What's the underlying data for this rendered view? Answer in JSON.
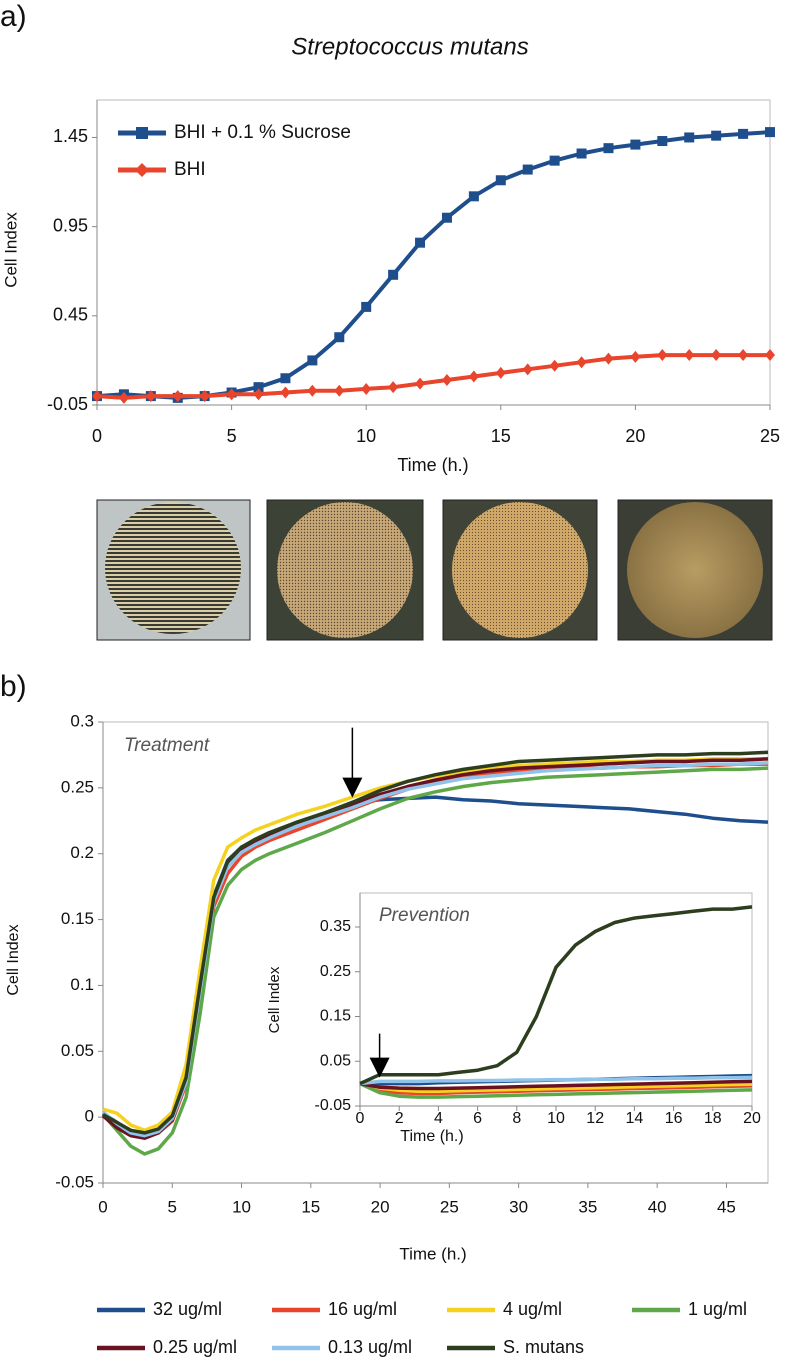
{
  "chart_data": [
    {
      "type": "line",
      "panel": "a)",
      "title": "Streptococcus mutans",
      "xlabel": "Time (h.)",
      "ylabel": "Cell Index",
      "x": [
        0,
        1,
        2,
        3,
        4,
        5,
        6,
        7,
        8,
        9,
        10,
        11,
        12,
        13,
        14,
        15,
        16,
        17,
        18,
        19,
        20,
        21,
        22,
        23,
        24,
        25
      ],
      "series": [
        {
          "name": "BHI + 0.1 % Sucrose",
          "color": "#1f4e8c",
          "marker": "square",
          "values": [
            0,
            0.01,
            0,
            -0.01,
            0,
            0.02,
            0.05,
            0.1,
            0.2,
            0.33,
            0.5,
            0.68,
            0.86,
            1.0,
            1.12,
            1.21,
            1.27,
            1.32,
            1.36,
            1.39,
            1.41,
            1.43,
            1.45,
            1.46,
            1.47,
            1.48
          ]
        },
        {
          "name": "BHI",
          "color": "#e8452c",
          "marker": "diamond",
          "values": [
            0,
            -0.01,
            0,
            0,
            0,
            0.01,
            0.01,
            0.02,
            0.03,
            0.03,
            0.04,
            0.05,
            0.07,
            0.09,
            0.11,
            0.13,
            0.15,
            0.17,
            0.19,
            0.21,
            0.22,
            0.23,
            0.23,
            0.23,
            0.23,
            0.23
          ]
        }
      ],
      "xlim": [
        0,
        25
      ],
      "xticks": [
        0,
        5,
        10,
        15,
        20,
        25
      ],
      "ylim": [
        -0.05,
        1.66
      ],
      "yticks": [
        -0.05,
        0.45,
        0.95,
        1.45
      ],
      "legend": "upper left"
    },
    {
      "type": "line",
      "panel": "b)",
      "annotation": "Treatment",
      "arrow_x": 18,
      "xlabel": "Time (h.)",
      "ylabel": "Cell Index",
      "x": [
        0,
        1,
        2,
        3,
        4,
        5,
        6,
        7,
        8,
        9,
        10,
        11,
        12,
        14,
        16,
        18,
        20,
        22,
        24,
        26,
        28,
        30,
        32,
        34,
        36,
        38,
        40,
        42,
        44,
        46,
        48
      ],
      "series": [
        {
          "name": "32 ug/ml",
          "color": "#1f4e8c",
          "values": [
            0.003,
            -0.004,
            -0.011,
            -0.013,
            -0.01,
            0,
            0.03,
            0.1,
            0.168,
            0.195,
            0.205,
            0.21,
            0.215,
            0.224,
            0.231,
            0.238,
            0.241,
            0.242,
            0.243,
            0.241,
            0.24,
            0.238,
            0.237,
            0.236,
            0.235,
            0.234,
            0.232,
            0.23,
            0.227,
            0.225,
            0.224
          ]
        },
        {
          "name": "16 ug/ml",
          "color": "#e8452c",
          "values": [
            0.002,
            -0.006,
            -0.013,
            -0.015,
            -0.012,
            -0.003,
            0.025,
            0.092,
            0.16,
            0.185,
            0.198,
            0.205,
            0.21,
            0.218,
            0.226,
            0.234,
            0.242,
            0.249,
            0.254,
            0.258,
            0.261,
            0.263,
            0.264,
            0.265,
            0.265,
            0.266,
            0.266,
            0.267,
            0.267,
            0.268,
            0.268
          ]
        },
        {
          "name": "4 ug/ml",
          "color": "#f5d21f",
          "values": [
            0.006,
            0.003,
            -0.006,
            -0.01,
            -0.006,
            0.004,
            0.04,
            0.112,
            0.18,
            0.205,
            0.212,
            0.218,
            0.222,
            0.23,
            0.236,
            0.243,
            0.25,
            0.255,
            0.259,
            0.262,
            0.265,
            0.267,
            0.268,
            0.269,
            0.27,
            0.27,
            0.271,
            0.271,
            0.272,
            0.272,
            0.272
          ]
        },
        {
          "name": "1 ug/ml",
          "color": "#5ea84a",
          "values": [
            0.002,
            -0.01,
            -0.022,
            -0.028,
            -0.024,
            -0.012,
            0.015,
            0.078,
            0.152,
            0.176,
            0.188,
            0.195,
            0.2,
            0.208,
            0.216,
            0.225,
            0.234,
            0.242,
            0.247,
            0.251,
            0.254,
            0.256,
            0.258,
            0.259,
            0.26,
            0.261,
            0.262,
            0.263,
            0.264,
            0.264,
            0.265
          ]
        },
        {
          "name": "0.25 ug/ml",
          "color": "#6b1220",
          "values": [
            0.001,
            -0.008,
            -0.014,
            -0.016,
            -0.012,
            -0.002,
            0.028,
            0.098,
            0.165,
            0.192,
            0.203,
            0.209,
            0.214,
            0.222,
            0.229,
            0.237,
            0.245,
            0.251,
            0.256,
            0.26,
            0.263,
            0.265,
            0.266,
            0.267,
            0.268,
            0.269,
            0.27,
            0.27,
            0.271,
            0.271,
            0.272
          ]
        },
        {
          "name": "0.13 ug/ml",
          "color": "#8fc3ea",
          "values": [
            0.004,
            -0.005,
            -0.012,
            -0.014,
            -0.011,
            -0.001,
            0.027,
            0.096,
            0.164,
            0.19,
            0.201,
            0.207,
            0.212,
            0.221,
            0.228,
            0.235,
            0.243,
            0.249,
            0.253,
            0.257,
            0.259,
            0.261,
            0.263,
            0.264,
            0.265,
            0.266,
            0.267,
            0.267,
            0.268,
            0.268,
            0.269
          ]
        },
        {
          "name": "S. mutans",
          "color": "#2d3e1e",
          "values": [
            0.002,
            -0.004,
            -0.01,
            -0.012,
            -0.009,
            0.001,
            0.03,
            0.1,
            0.167,
            0.194,
            0.205,
            0.211,
            0.216,
            0.224,
            0.231,
            0.239,
            0.248,
            0.255,
            0.26,
            0.264,
            0.267,
            0.27,
            0.271,
            0.272,
            0.273,
            0.274,
            0.275,
            0.275,
            0.276,
            0.276,
            0.277
          ]
        }
      ],
      "xlim": [
        0,
        48
      ],
      "xticks": [
        0,
        5,
        10,
        15,
        20,
        25,
        30,
        35,
        40,
        45
      ],
      "ylim": [
        -0.05,
        0.3
      ],
      "yticks": [
        -0.05,
        0,
        0.05,
        0.1,
        0.15,
        0.2,
        0.25,
        0.3
      ],
      "legend": "bottom"
    },
    {
      "type": "line",
      "annotation": "Prevention",
      "arrow_x": 1,
      "xlabel": "Time (h.)",
      "ylabel": "Cell Index",
      "x": [
        0,
        1,
        2,
        3,
        4,
        5,
        6,
        7,
        8,
        9,
        10,
        11,
        12,
        13,
        14,
        15,
        16,
        17,
        18,
        19,
        20
      ],
      "series": [
        {
          "color": "#1f4e8c",
          "values": [
            0,
            0,
            0,
            0,
            0.002,
            0.003,
            0.004,
            0.005,
            0.006,
            0.007,
            0.008,
            0.009,
            0.01,
            0.011,
            0.012,
            0.013,
            0.014,
            0.015,
            0.016,
            0.017,
            0.018
          ]
        },
        {
          "color": "#e8452c",
          "values": [
            0,
            -0.015,
            -0.02,
            -0.022,
            -0.022,
            -0.02,
            -0.019,
            -0.018,
            -0.017,
            -0.016,
            -0.015,
            -0.014,
            -0.013,
            -0.012,
            -0.011,
            -0.01,
            -0.009,
            -0.008,
            -0.007,
            -0.006,
            -0.005
          ]
        },
        {
          "color": "#f5d21f",
          "values": [
            0,
            -0.01,
            -0.015,
            -0.017,
            -0.017,
            -0.016,
            -0.015,
            -0.014,
            -0.013,
            -0.012,
            -0.011,
            -0.01,
            -0.009,
            -0.008,
            -0.007,
            -0.006,
            -0.005,
            -0.004,
            -0.003,
            -0.002,
            -0.001
          ]
        },
        {
          "color": "#5ea84a",
          "values": [
            0,
            -0.02,
            -0.028,
            -0.03,
            -0.03,
            -0.029,
            -0.028,
            -0.027,
            -0.026,
            -0.025,
            -0.024,
            -0.023,
            -0.022,
            -0.021,
            -0.02,
            -0.019,
            -0.018,
            -0.017,
            -0.016,
            -0.015,
            -0.014
          ]
        },
        {
          "color": "#6b1220",
          "values": [
            0,
            -0.008,
            -0.01,
            -0.011,
            -0.011,
            -0.01,
            -0.009,
            -0.008,
            -0.007,
            -0.006,
            -0.005,
            -0.004,
            -0.003,
            -0.002,
            -0.001,
            0,
            0.001,
            0.002,
            0.003,
            0.004,
            0.005
          ]
        },
        {
          "color": "#8fc3ea",
          "values": [
            0,
            0.005,
            0.005,
            0.005,
            0.006,
            0.006,
            0.007,
            0.007,
            0.008,
            0.008,
            0.009,
            0.009,
            0.01,
            0.01,
            0.011,
            0.011,
            0.012,
            0.012,
            0.013,
            0.013,
            0.014
          ]
        },
        {
          "color": "#2d3e1e",
          "values": [
            0,
            0.02,
            0.02,
            0.02,
            0.02,
            0.025,
            0.03,
            0.04,
            0.07,
            0.15,
            0.26,
            0.31,
            0.34,
            0.36,
            0.37,
            0.375,
            0.38,
            0.385,
            0.39,
            0.39,
            0.395
          ]
        }
      ],
      "xlim": [
        0,
        20
      ],
      "xticks": [
        0,
        2,
        4,
        6,
        8,
        10,
        12,
        14,
        16,
        18,
        20
      ],
      "ylim": [
        -0.05,
        0.426
      ],
      "yticks": [
        -0.05,
        0.05,
        0.15,
        0.25,
        0.35
      ]
    }
  ]
}
